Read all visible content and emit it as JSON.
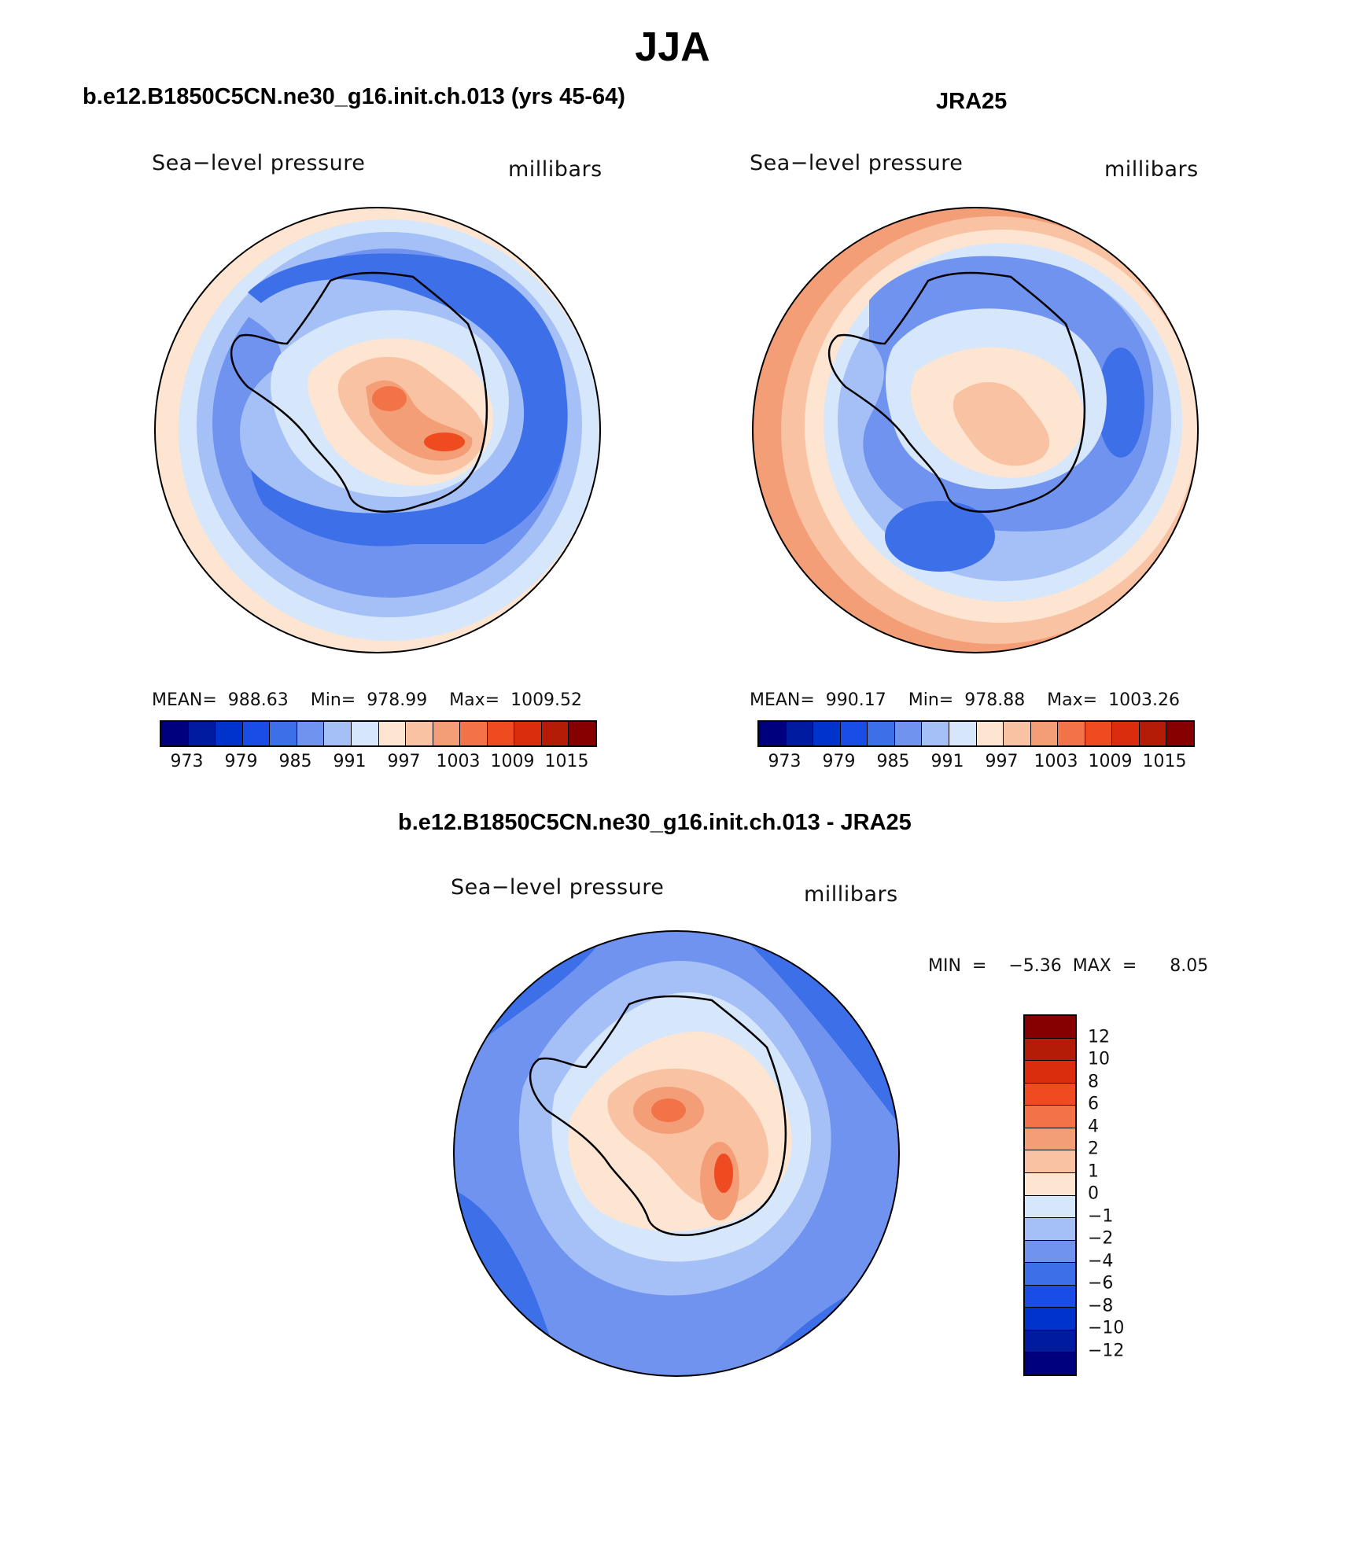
{
  "title": "JJA",
  "colors": {
    "abs_scale": [
      "#00007f",
      "#001aa0",
      "#0033cc",
      "#1a4de6",
      "#3d6fe8",
      "#6f93ef",
      "#a5c0f7",
      "#d6e6fb",
      "#fde5d2",
      "#f8c2a3",
      "#f49e77",
      "#f27347",
      "#ee4b20",
      "#d92d0d",
      "#b51c08",
      "#870000"
    ],
    "diff_scale": [
      "#00007f",
      "#001aa0",
      "#0033cc",
      "#1a4de6",
      "#3d6fe8",
      "#6f93ef",
      "#a5c0f7",
      "#d6e6fb",
      "#fde5d2",
      "#f8c2a3",
      "#f49e77",
      "#f27347",
      "#ee4b20",
      "#d92d0d",
      "#b51c08",
      "#870000"
    ],
    "coast": "#000000"
  },
  "panels": [
    {
      "title": "b.e12.B1850C5CN.ne30_g16.init.ch.013 (yrs 45-64)",
      "variable": "Sea−level pressure",
      "units": "millibars",
      "stats": "MEAN=  988.63    Min=  978.99    Max=  1009.52",
      "colorbar_labels": [
        "973",
        "979",
        "985",
        "991",
        "997",
        "1003",
        "1009",
        "1015"
      ]
    },
    {
      "title": "JRA25",
      "variable": "Sea−level pressure",
      "units": "millibars",
      "stats": "MEAN=  990.17    Min=  978.88    Max=  1003.26",
      "colorbar_labels": [
        "973",
        "979",
        "985",
        "991",
        "997",
        "1003",
        "1009",
        "1015"
      ]
    },
    {
      "title": "b.e12.B1850C5CN.ne30_g16.init.ch.013 - JRA25",
      "variable": "Sea−level pressure",
      "units": "millibars",
      "stats": "MIN  =    −5.36  MAX  =      8.05",
      "colorbar_labels": [
        "12",
        "10",
        "8",
        "6",
        "4",
        "2",
        "1",
        "0",
        "−1",
        "−2",
        "−4",
        "−6",
        "−8",
        "−10",
        "−12"
      ]
    }
  ]
}
